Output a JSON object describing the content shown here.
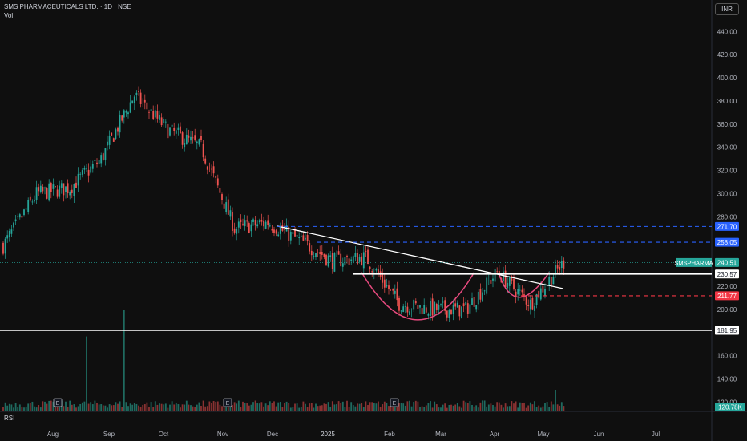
{
  "header": {
    "title": "SMS PHARMACEUTICALS LTD. · 1D · NSE",
    "vol_label": "Vol",
    "currency": "INR"
  },
  "rsi_label": "RSI",
  "colors": {
    "up": "#26a69a",
    "down": "#ef5350",
    "bg": "#0f0f0f",
    "grid": "#1e1e1e",
    "trend": "#ffffff",
    "target_blue": "#2962ff",
    "stop_red": "#f23645",
    "cup": "#e84a7f"
  },
  "chart_data": {
    "type": "candlestick",
    "title": "SMS PHARMACEUTICALS LTD. · 1D · NSE",
    "x_tick_labels": [
      "Aug",
      "Sep",
      "Oct",
      "Nov",
      "Dec",
      "2025",
      "Feb",
      "Mar",
      "Apr",
      "May",
      "Jun",
      "Jul"
    ],
    "y_tick_labels": [
      "120.00",
      "140.00",
      "160.00",
      "200.00",
      "220.00",
      "280.00",
      "300.00",
      "320.00",
      "340.00",
      "360.00",
      "380.00",
      "400.00",
      "420.00",
      "440.00"
    ],
    "ylim": [
      112,
      452
    ],
    "y_scale": "linear",
    "grid": false,
    "price_line": {
      "label": "SMSPHARMA",
      "value": "240.51"
    },
    "horizontal_levels": [
      {
        "value": "271.70",
        "style": "dashed",
        "color": "#2962ff"
      },
      {
        "value": "258.05",
        "style": "dashed",
        "color": "#2962ff"
      },
      {
        "value": "230.57",
        "style": "solid",
        "color": "#ffffff"
      },
      {
        "value": "211.77",
        "style": "dashed",
        "color": "#f23645"
      },
      {
        "value": "181.95",
        "style": "solid",
        "color": "#ffffff"
      }
    ],
    "trendline": {
      "from": [
        "Dec",
        272
      ],
      "to": [
        "May",
        218
      ]
    },
    "earnings_markers": [
      {
        "label": "E",
        "month": "Aug"
      },
      {
        "label": "E",
        "month": "Nov"
      },
      {
        "label": "E",
        "month": "Feb"
      }
    ],
    "volume_label": "120.78K",
    "months": [
      "Aug",
      "Sep",
      "Oct",
      "Nov",
      "Dec",
      "2025",
      "Feb",
      "Mar",
      "Apr",
      "May"
    ],
    "closes": [
      255,
      300,
      305,
      330,
      385,
      355,
      340,
      270,
      275,
      260,
      242,
      245,
      205,
      200,
      200,
      232,
      205,
      241
    ]
  }
}
